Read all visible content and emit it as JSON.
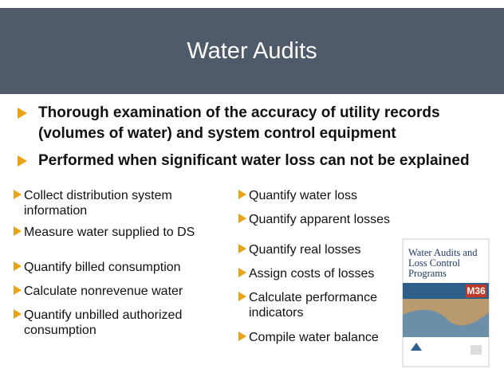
{
  "header": {
    "title": "Water Audits"
  },
  "main_bullets": [
    "Thorough examination of the accuracy of  utility records (volumes of water) and system control equipment",
    "Performed when significant water loss can not be explained"
  ],
  "left_bullets": [
    "Collect distribution system information",
    "Measure water supplied to DS",
    "Quantify billed consumption",
    "Calculate nonrevenue water",
    "Quantify unbilled authorized consumption"
  ],
  "right_bullets": [
    "Quantify water loss",
    "Quantify apparent losses",
    "Quantify real losses",
    "Assign costs of losses",
    "Calculate performance indicators",
    "Compile water balance"
  ],
  "book": {
    "title": "Water Audits and Loss Control Programs",
    "code": "M36"
  }
}
